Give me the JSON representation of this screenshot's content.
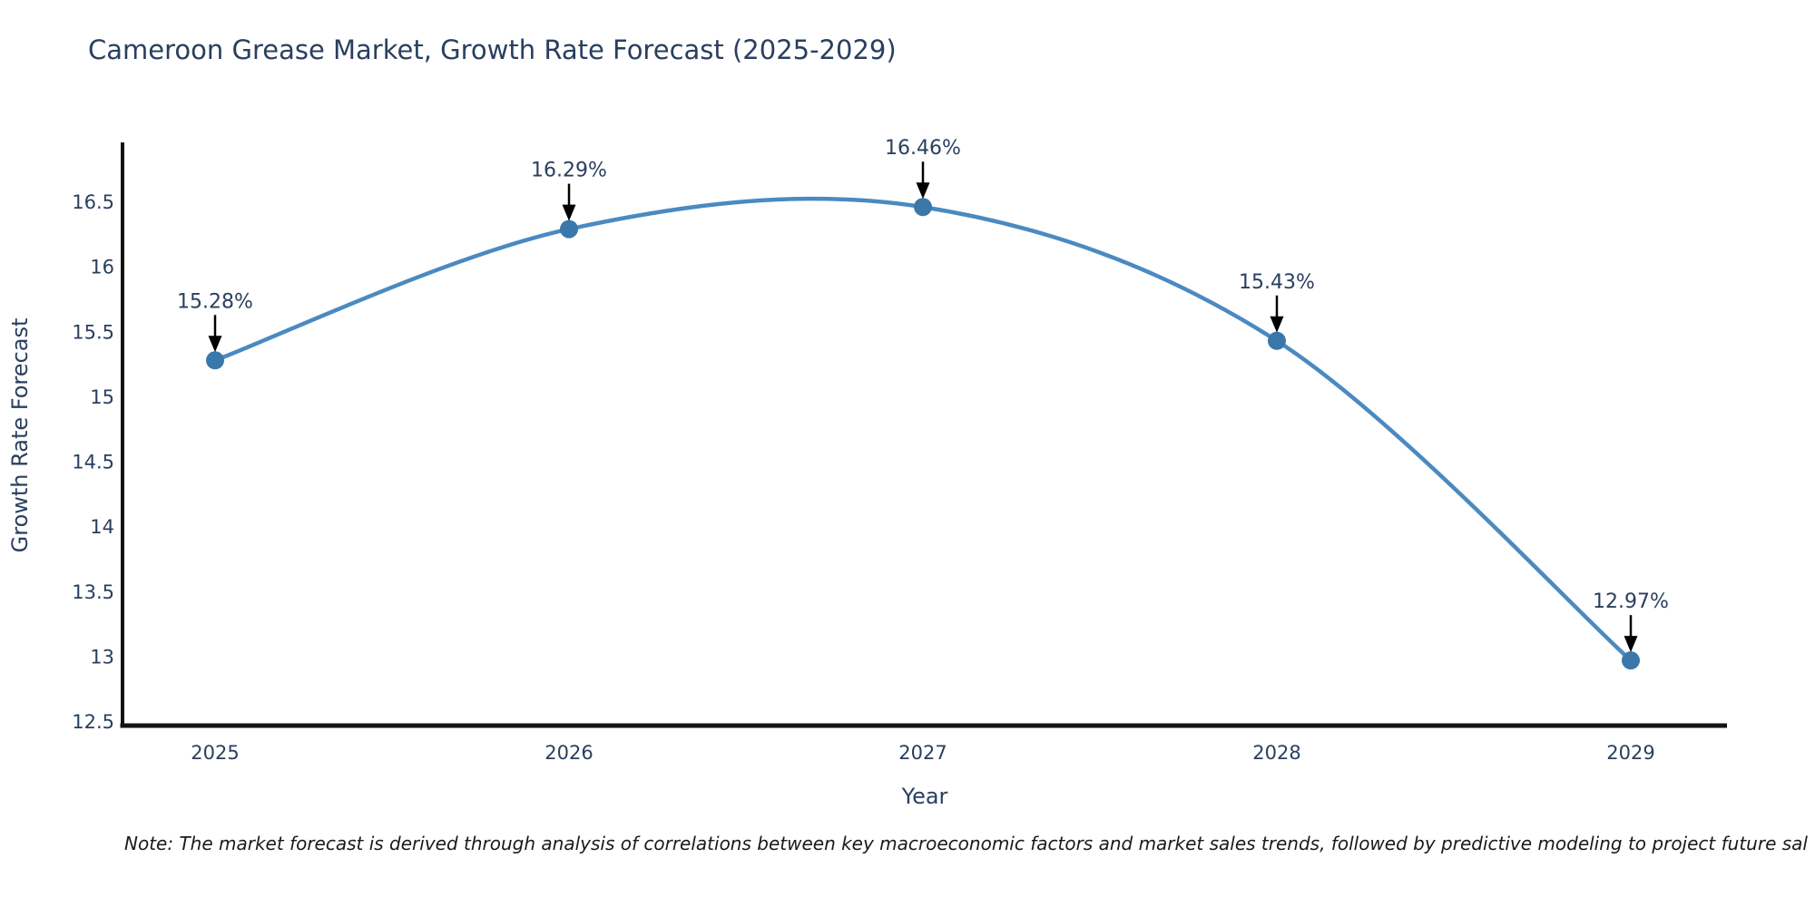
{
  "page": {
    "title": "Cameroon Grease Market, Growth Rate Forecast (2025-2029)",
    "note": "Note: The market forecast is derived through analysis of correlations between key macroeconomic factors and market sales trends, followed by predictive modeling to project future sal"
  },
  "chart_data": {
    "type": "line",
    "title": "Cameroon Grease Market, Growth Rate Forecast (2025-2029)",
    "categories": [
      "2025",
      "2026",
      "2027",
      "2028",
      "2029"
    ],
    "values": [
      15.28,
      16.29,
      16.46,
      15.43,
      12.97
    ],
    "point_labels": [
      "15.28%",
      "16.29%",
      "16.46%",
      "15.43%",
      "12.97%"
    ],
    "xlabel": "Year",
    "ylabel": "Growth Rate Forecast",
    "ylim": [
      12.5,
      17.0
    ],
    "yticks": [
      "12.5",
      "13",
      "13.5",
      "14",
      "14.5",
      "15",
      "15.5",
      "16",
      "16.5"
    ],
    "grid": false,
    "legend_position": "none",
    "line_color": "#4a8ac1",
    "marker_color": "#3a78ab",
    "arrow_color": "#000000",
    "axis_color": "#131313",
    "text_color": "#2a3f5f",
    "note_color": "#1a1a1a"
  }
}
